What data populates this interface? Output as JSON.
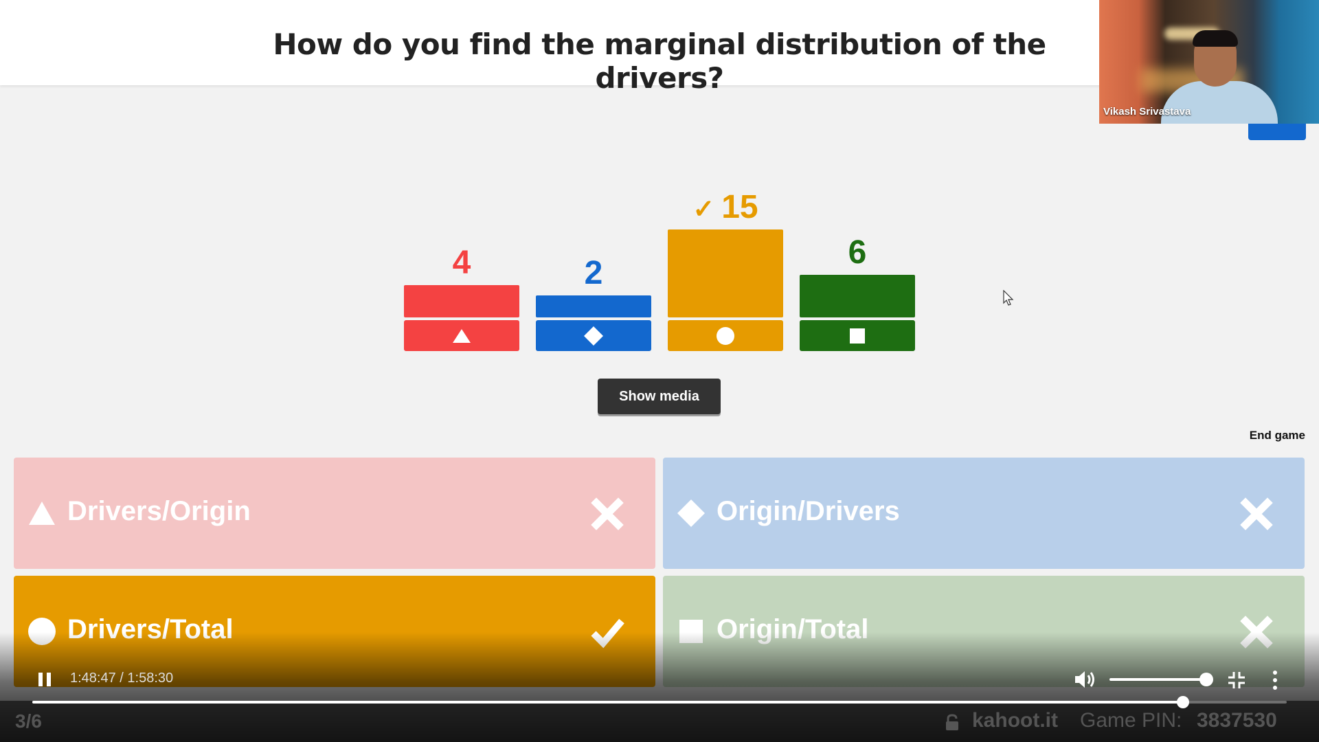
{
  "question": {
    "text": "How do you find the marginal distribution of the drivers?"
  },
  "webcam": {
    "participant_name": "Vikash Srivastava"
  },
  "results": [
    {
      "shape": "triangle",
      "count": "4",
      "value": 4,
      "color": "#f44242",
      "correct": false
    },
    {
      "shape": "diamond",
      "count": "2",
      "value": 2,
      "color": "#1368ce",
      "correct": false
    },
    {
      "shape": "circle",
      "count": "15",
      "value": 15,
      "color": "#e69b00",
      "correct": true
    },
    {
      "shape": "square",
      "count": "6",
      "value": 6,
      "color": "#1e6e12",
      "correct": false
    }
  ],
  "check_glyph": "✓",
  "show_media_label": "Show media",
  "end_game_label": "End game",
  "answers": [
    {
      "label": "Drivers/Origin",
      "shape": "triangle-icon",
      "bg": "#f4c5c5",
      "correct": false
    },
    {
      "label": "Origin/Drivers",
      "shape": "diamond-icon",
      "bg": "#b8cfea",
      "correct": false
    },
    {
      "label": "Drivers/Total",
      "shape": "circle-icon",
      "bg": "#e69b00",
      "correct": true
    },
    {
      "label": "Origin/Total",
      "shape": "square-icon",
      "bg": "#c3d6bd",
      "correct": false
    }
  ],
  "player": {
    "time": "1:48:47 / 1:58:30",
    "progress_fraction": 0.9175,
    "volume_fraction": 1.0
  },
  "footer": {
    "question_counter": "3/6",
    "url": "kahoot.it",
    "pin_label": "Game PIN:",
    "pin_value": "3837530"
  }
}
